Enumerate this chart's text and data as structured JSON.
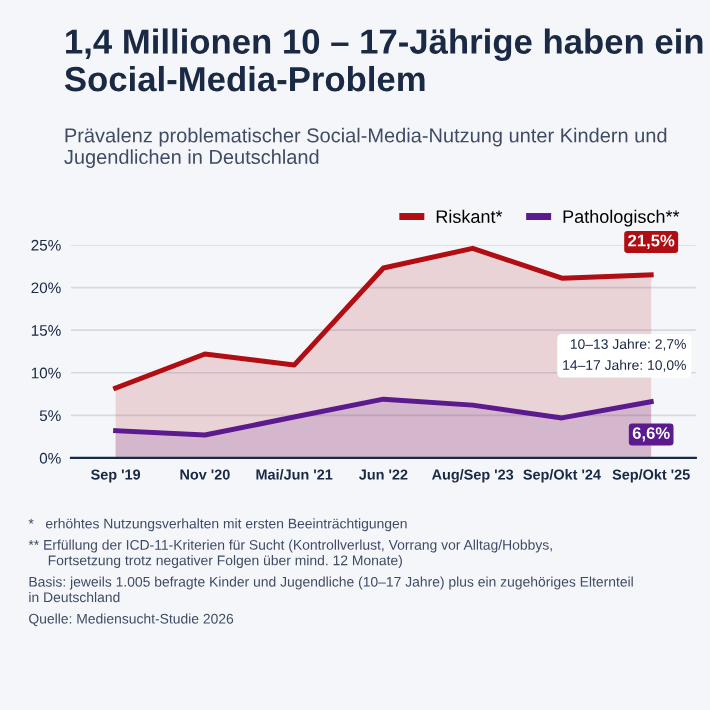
{
  "chart_data": {
    "type": "area",
    "title": "1,4 Millionen 10 – 17-Jährige haben ein Social-Media-Problem",
    "subtitle": "Prävalenz problematischer Social-Media-Nutzung unter Kindern und Jugendlichen in Deutschland",
    "categories": [
      "Sep '19",
      "Nov '20",
      "Mai/Jun '21",
      "Jun '22",
      "Aug/Sep '23",
      "Sep/Okt '24",
      "Sep/Okt '25"
    ],
    "series": [
      {
        "name": "Riskant*",
        "color": "#b00e12",
        "values": [
          8.2,
          12.2,
          10.9,
          22.3,
          24.6,
          21.1,
          21.5
        ],
        "value_labels": [
          null,
          null,
          null,
          null,
          null,
          null,
          "21,5%"
        ]
      },
      {
        "name": "Pathologisch**",
        "color": "#5b1a8e",
        "values": [
          3.2,
          2.7,
          4.8,
          6.9,
          6.2,
          4.7,
          6.6
        ],
        "value_labels": [
          null,
          null,
          null,
          null,
          null,
          null,
          "6,6%"
        ]
      }
    ],
    "ylim": [
      0,
      25
    ],
    "yticks": [
      {
        "value": 0,
        "label": "0%"
      },
      {
        "value": 5,
        "label": "5%"
      },
      {
        "value": 10,
        "label": "10%"
      },
      {
        "value": 15,
        "label": "15%"
      },
      {
        "value": 20,
        "label": "20%"
      },
      {
        "value": 25,
        "label": "25%"
      }
    ],
    "grid": "y",
    "legend": "top right",
    "marker": "none",
    "line_style": "solid",
    "annotations": [
      "10–13 Jahre: 2,7%\n14–17 Jahre: 10,0%",
      "*   erhöhtes Nutzungsverhalten mit ersten Beeinträchtigungen",
      "** Erfüllung der ICD-11-Kriterien für Sucht (Kontrollverlust, Vorrang vor Alltag/Hobbys,\n     Fortsetzung trotz negativer Folgen über mind. 12 Monate)",
      "Basis: jeweils 1.005 befragte Kinder und Jugendliche (10–17 Jahre) plus ein zugehöriges Elternteil\nin Deutschland",
      "Quelle: Mediensucht-Studie 2026"
    ]
  }
}
